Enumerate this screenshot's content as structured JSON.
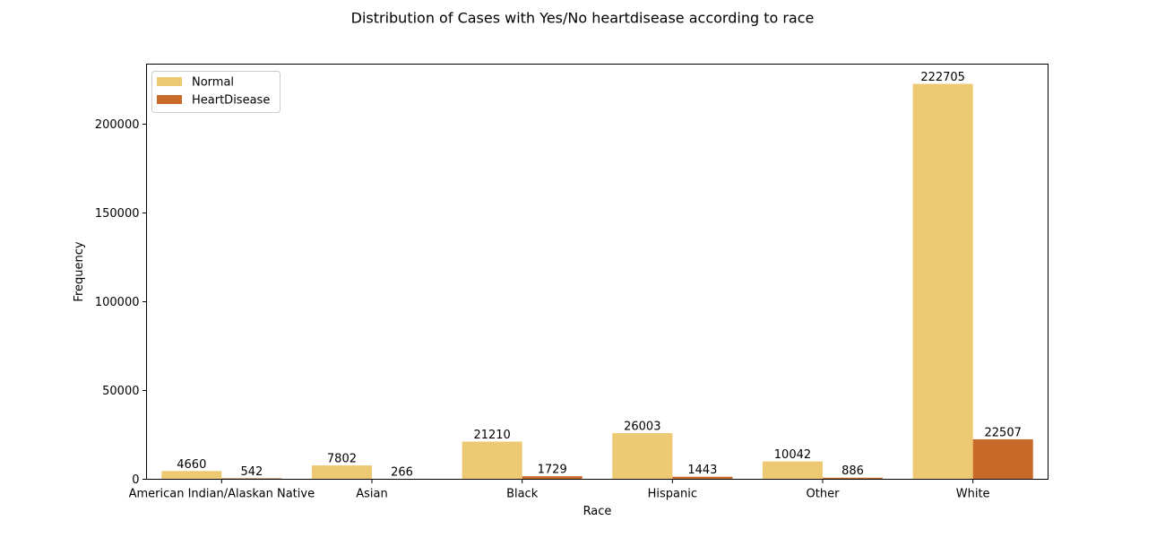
{
  "chart_data": {
    "type": "bar",
    "title": "Distribution of Cases with Yes/No heartdisease according to race",
    "xlabel": "Race",
    "ylabel": "Frequency",
    "categories": [
      "American Indian/Alaskan Native",
      "Asian",
      "Black",
      "Hispanic",
      "Other",
      "White"
    ],
    "series": [
      {
        "name": "Normal",
        "color": "#EDC974",
        "values": [
          4660,
          7802,
          21210,
          26003,
          10042,
          222705
        ]
      },
      {
        "name": "HeartDisease",
        "color": "#C96A2A",
        "values": [
          542,
          266,
          1729,
          1443,
          886,
          22507
        ]
      }
    ],
    "yticks": [
      0,
      50000,
      100000,
      150000,
      200000
    ],
    "ylim": [
      0,
      233840
    ],
    "legend_position": "top-left",
    "grid": false
  }
}
